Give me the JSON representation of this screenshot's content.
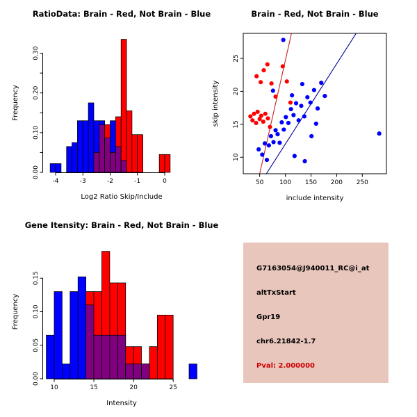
{
  "colors": {
    "red": "#FF0000",
    "blue": "#0000FF",
    "overlap": "#800080",
    "red_line": "#C82020",
    "blue_line": "#000090",
    "axis": "#000000"
  },
  "chart_data": [
    {
      "id": "ratio_hist",
      "type": "bar",
      "subtype": "overlaid-histogram",
      "title": "RatioData: Brain - Red, Not Brain - Blue",
      "xlabel": "Log2 Ratio Skip/Include",
      "ylabel": "Frequency",
      "bin_start": -4.2,
      "bin_width": 0.2,
      "xlim": [
        -4.46,
        1.3
      ],
      "ylim": [
        0,
        0.35
      ],
      "xticks": [
        -4,
        -3,
        -2,
        -1,
        0
      ],
      "xtick_labels": [
        "-4",
        "-3",
        "-2",
        "-1",
        "0"
      ],
      "yticks": [
        0,
        0.05,
        0.1,
        0.15,
        0.2,
        0.25,
        0.3
      ],
      "ytick_labels": [
        "0.00",
        "",
        "0.10",
        "",
        "0.20",
        "",
        "0.30"
      ],
      "series": [
        {
          "name": "Not Brain",
          "color_key": "blue",
          "values": [
            0.022,
            0.022,
            0,
            0.065,
            0.075,
            0.13,
            0.13,
            0.175,
            0.13,
            0.13,
            0.087,
            0.13,
            0.065,
            0.03,
            0,
            0,
            0,
            0,
            0,
            0,
            0,
            0
          ]
        },
        {
          "name": "Brain",
          "color_key": "red",
          "values": [
            0,
            0,
            0,
            0,
            0,
            0,
            0,
            0,
            0.05,
            0.12,
            0.12,
            0.05,
            0.14,
            0.335,
            0.155,
            0.095,
            0.095,
            0,
            0,
            0,
            0.045,
            0.045
          ]
        }
      ]
    },
    {
      "id": "intensity_scatter",
      "type": "scatter",
      "frame": true,
      "title": "Brain - Red, Not Brain - Blue",
      "xlabel": "include intensity",
      "ylabel": "skip intensity",
      "xlim": [
        18,
        297
      ],
      "ylim": [
        7.5,
        28.8
      ],
      "xticks": [
        50,
        100,
        150,
        200,
        250
      ],
      "xtick_labels": [
        "50",
        "100",
        "150",
        "200",
        "250"
      ],
      "yticks": [
        10,
        15,
        20,
        25
      ],
      "ytick_labels": [
        "10",
        "15",
        "20",
        "25"
      ],
      "series": [
        {
          "name": "Brain",
          "color_key": "red",
          "points": [
            [
              32,
              16.2
            ],
            [
              36,
              15.6
            ],
            [
              39,
              16.6
            ],
            [
              43,
              15.2
            ],
            [
              46,
              16.9
            ],
            [
              50,
              15.8
            ],
            [
              53,
              16.3
            ],
            [
              57,
              15.4
            ],
            [
              61,
              16.6
            ],
            [
              66,
              15.9
            ],
            [
              44,
              22.3
            ],
            [
              52,
              21.4
            ],
            [
              58,
              23.2
            ],
            [
              65,
              24.1
            ],
            [
              73,
              21.2
            ],
            [
              81,
              19.2
            ],
            [
              95,
              23.8
            ],
            [
              103,
              21.5
            ],
            [
              110,
              18.3
            ],
            [
              70,
              14.6
            ]
          ]
        },
        {
          "name": "Not Brain",
          "color_key": "blue",
          "points": [
            [
              48,
              11.2
            ],
            [
              55,
              10.4
            ],
            [
              60,
              12.1
            ],
            [
              64,
              9.6
            ],
            [
              68,
              11.8
            ],
            [
              72,
              13.2
            ],
            [
              77,
              12.3
            ],
            [
              81,
              14.1
            ],
            [
              85,
              13.5
            ],
            [
              89,
              12.2
            ],
            [
              93,
              15.3
            ],
            [
              97,
              14.2
            ],
            [
              101,
              16.1
            ],
            [
              106,
              15.2
            ],
            [
              111,
              17.3
            ],
            [
              116,
              16.4
            ],
            [
              121,
              18.2
            ],
            [
              126,
              15.6
            ],
            [
              131,
              17.8
            ],
            [
              137,
              16.2
            ],
            [
              143,
              19.1
            ],
            [
              149,
              18.3
            ],
            [
              156,
              20.2
            ],
            [
              163,
              17.4
            ],
            [
              170,
              21.3
            ],
            [
              177,
              19.3
            ],
            [
              118,
              10.2
            ],
            [
              138,
              9.4
            ],
            [
              96,
              27.8
            ],
            [
              76,
              20.1
            ],
            [
              113,
              19.4
            ],
            [
              133,
              21.1
            ],
            [
              283,
              13.6
            ],
            [
              160,
              15.1
            ],
            [
              151,
              13.2
            ]
          ]
        }
      ],
      "fit_lines": [
        {
          "color_key": "red",
          "x": [
            50,
            112
          ],
          "y": [
            7.5,
            28.8
          ]
        },
        {
          "color_key": "blue",
          "x": [
            63,
            238
          ],
          "y": [
            7.5,
            28.8
          ]
        }
      ]
    },
    {
      "id": "gene_hist",
      "type": "bar",
      "subtype": "overlaid-histogram",
      "title": "Gene Itensity: Brain - Red, Not Brain - Blue",
      "xlabel": "Intensity",
      "ylabel": "Frequency",
      "bin_start": 9,
      "bin_width": 1,
      "xlim": [
        8.6,
        28.4
      ],
      "ylim": [
        0,
        0.2
      ],
      "xticks": [
        10,
        15,
        20,
        25
      ],
      "xtick_labels": [
        "10",
        "15",
        "20",
        "25"
      ],
      "yticks": [
        0,
        0.05,
        0.1,
        0.15
      ],
      "ytick_labels": [
        "0.00",
        "0.05",
        "0.10",
        "0.15"
      ],
      "series": [
        {
          "name": "Not Brain",
          "color_key": "blue",
          "values": [
            0.065,
            0.13,
            0.022,
            0.13,
            0.152,
            0.11,
            0.065,
            0.065,
            0.065,
            0.065,
            0.022,
            0.022,
            0.022,
            0,
            0,
            0,
            0,
            0,
            0.022
          ]
        },
        {
          "name": "Brain",
          "color_key": "red",
          "values": [
            0,
            0,
            0,
            0,
            0,
            0.13,
            0.13,
            0.19,
            0.143,
            0.143,
            0.048,
            0.048,
            0.022,
            0.048,
            0.095,
            0.095,
            0,
            0,
            0
          ]
        }
      ]
    }
  ],
  "info_panel": {
    "bg": "#E9C6BC",
    "lines": [
      {
        "text": "G7163054@J940011_RC@i_at",
        "color": "#000000"
      },
      {
        "text": "altTxStart",
        "color": "#000000"
      },
      {
        "text": "Gpr19",
        "color": "#000000"
      },
      {
        "text": "chr6.21842-1.7",
        "color": "#000000"
      },
      {
        "text": "Pval: 2.000000",
        "color": "#CC0000"
      }
    ]
  }
}
